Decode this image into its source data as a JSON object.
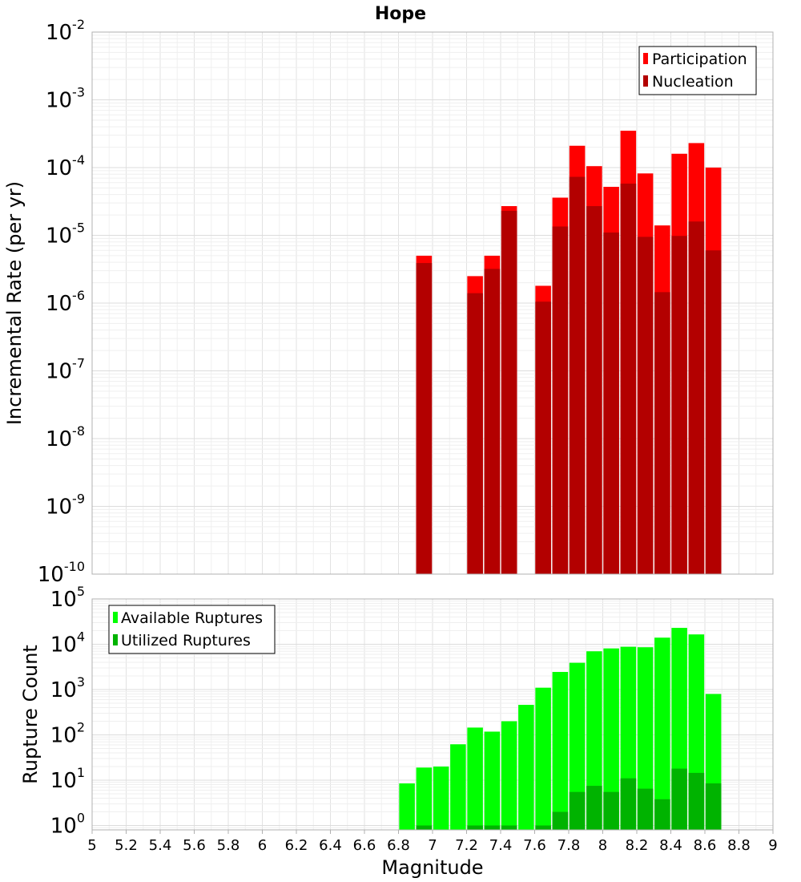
{
  "chart_data": {
    "title": "Hope",
    "xlabel": "Magnitude",
    "xlim": [
      5,
      9
    ],
    "x_ticks": [
      "5",
      "5.2",
      "5.4",
      "5.6",
      "5.8",
      "6",
      "6.2",
      "6.4",
      "6.6",
      "6.8",
      "7",
      "7.2",
      "7.4",
      "7.6",
      "7.8",
      "8",
      "8.2",
      "8.4",
      "8.6",
      "8.8",
      "9"
    ],
    "grid": true,
    "panels": [
      {
        "type": "bar",
        "yscale": "log",
        "ylabel": "Incremental Rate (per yr)",
        "ylim": [
          1e-10,
          0.01
        ],
        "y_tick_exponents": [
          "-10",
          "-9",
          "-8",
          "-7",
          "-6",
          "-5",
          "-4",
          "-3",
          "-2"
        ],
        "legend_position": "top-right",
        "series": [
          {
            "name": "Participation",
            "color": "#ff0000",
            "x": [
              6.95,
              7.25,
              7.35,
              7.45,
              7.65,
              7.75,
              7.85,
              7.95,
              8.05,
              8.15,
              8.25,
              8.35,
              8.45,
              8.55,
              8.65
            ],
            "values": [
              5e-06,
              2.5e-06,
              5e-06,
              2.7e-05,
              1.8e-06,
              3.6e-05,
              0.00021,
              0.000105,
              5.2e-05,
              0.00035,
              8.2e-05,
              1.4e-05,
              0.00016,
              0.00023,
              0.0001
            ]
          },
          {
            "name": "Nucleation",
            "color": "#b30000",
            "x": [
              6.95,
              7.25,
              7.35,
              7.45,
              7.65,
              7.75,
              7.85,
              7.95,
              8.05,
              8.15,
              8.25,
              8.35,
              8.45,
              8.55,
              8.65
            ],
            "values": [
              3.9e-06,
              1.4e-06,
              3.2e-06,
              2.3e-05,
              1.05e-06,
              1.35e-05,
              7.3e-05,
              2.7e-05,
              1.1e-05,
              5.8e-05,
              9.5e-06,
              1.45e-06,
              9.8e-06,
              1.6e-05,
              6e-06
            ]
          }
        ]
      },
      {
        "type": "bar",
        "yscale": "log",
        "ylabel": "Rupture Count",
        "ylim": [
          0.8,
          100000.0
        ],
        "y_tick_exponents": [
          "0",
          "1",
          "2",
          "3",
          "4",
          "5"
        ],
        "legend_position": "top-left",
        "series": [
          {
            "name": "Available Ruptures",
            "color": "#00ff00",
            "x": [
              6.85,
              6.95,
              7.05,
              7.15,
              7.25,
              7.35,
              7.45,
              7.55,
              7.65,
              7.75,
              7.85,
              7.95,
              8.05,
              8.15,
              8.25,
              8.35,
              8.45,
              8.55,
              8.65
            ],
            "values": [
              8.5,
              19,
              20,
              62,
              145,
              118,
              200,
              460,
              1100,
              2450,
              3900,
              7000,
              8100,
              8800,
              8600,
              14000,
              23000,
              16500,
              800
            ]
          },
          {
            "name": "Utilized Ruptures",
            "color": "#00b300",
            "x": [
              6.95,
              7.25,
              7.35,
              7.45,
              7.65,
              7.75,
              7.85,
              7.95,
              8.05,
              8.15,
              8.25,
              8.35,
              8.45,
              8.55,
              8.65
            ],
            "values": [
              1,
              1,
              1,
              1,
              1,
              2,
              5.5,
              7.5,
              5.5,
              11,
              6.5,
              3.8,
              18,
              14.5,
              8.5
            ]
          }
        ]
      }
    ]
  }
}
